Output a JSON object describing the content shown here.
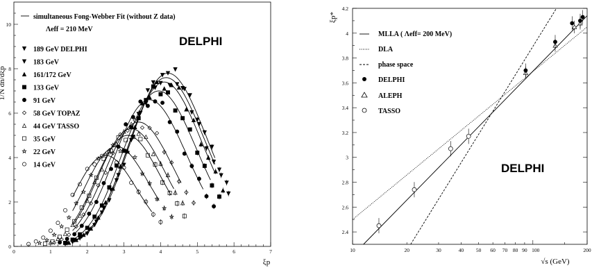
{
  "chart_data": [
    {
      "type": "scatter",
      "title": "DELPHI",
      "xlabel": "ξp",
      "ylabel": "1/N dn/dξp",
      "xlim": [
        0,
        7
      ],
      "ylim": [
        0,
        11
      ],
      "xticks": [
        "0",
        "1",
        "2",
        "3",
        "4",
        "5",
        "6",
        "7"
      ],
      "yticks": [
        "0",
        "2",
        "4",
        "6",
        "8",
        "10"
      ],
      "legend": {
        "fit": "simultaneous Fong-Webber Fit (without Z data)",
        "lambda": "Λeff = 210 MeV",
        "entries": [
          "189 GeV DELPHI",
          "183 GeV",
          "161/172 GeV",
          "133 GeV",
          "91 GeV",
          "58 GeV TOPAZ",
          "44 GeV TASSO",
          "35 GeV",
          "22 GeV",
          "14 GeV"
        ]
      },
      "series": [
        {
          "name": "189 GeV DELPHI",
          "marker": "tri-down",
          "peak_x": 4.2,
          "peak_y": 7.8,
          "width": 1.05,
          "xmax": 5.9,
          "shift": 0.0
        },
        {
          "name": "183 GeV",
          "marker": "tri-down-filled",
          "peak_x": 4.15,
          "peak_y": 7.6,
          "width": 1.05,
          "xmax": 5.9,
          "shift": 0.0
        },
        {
          "name": "161/172 GeV",
          "marker": "tri-up-filled",
          "peak_x": 4.1,
          "peak_y": 7.4,
          "width": 1.03,
          "xmax": 5.9,
          "shift": 0.0
        },
        {
          "name": "133 GeV",
          "marker": "square-filled",
          "peak_x": 3.95,
          "peak_y": 7.0,
          "width": 1.02,
          "xmax": 5.8,
          "shift": 0.0
        },
        {
          "name": "91 GeV",
          "marker": "circle-filled",
          "peak_x": 3.7,
          "peak_y": 6.6,
          "width": 1.0,
          "xmax": 5.6,
          "shift": 0.0
        },
        {
          "name": "58 GeV TOPAZ",
          "marker": "diamond-open",
          "peak_x": 3.4,
          "peak_y": 5.6,
          "width": 0.95,
          "xmax": 5.0,
          "shift": 0.0
        },
        {
          "name": "44 GeV TASSO",
          "marker": "tri-up-open",
          "peak_x": 3.2,
          "peak_y": 5.3,
          "width": 0.92,
          "xmax": 4.8,
          "shift": 0.0
        },
        {
          "name": "35 GeV",
          "marker": "square-open",
          "peak_x": 3.1,
          "peak_y": 5.0,
          "width": 0.9,
          "xmax": 4.7,
          "shift": 0.0
        },
        {
          "name": "22 GeV",
          "marker": "star-open",
          "peak_x": 2.8,
          "peak_y": 4.5,
          "width": 0.88,
          "xmax": 4.4,
          "shift": 0.0
        },
        {
          "name": "14 GeV",
          "marker": "circle-open",
          "peak_x": 2.5,
          "peak_y": 4.1,
          "width": 0.85,
          "xmax": 4.2,
          "shift": 0.0
        }
      ]
    },
    {
      "type": "scatter",
      "title": "DELPHI",
      "xlabel": "√s (GeV)",
      "ylabel": "ξp*",
      "xscale": "log",
      "xlim": [
        10,
        200
      ],
      "ylim": [
        2.3,
        4.2
      ],
      "xticks": [
        "10",
        "20",
        "30",
        "40",
        "50",
        "60",
        "70",
        "80",
        "90",
        "100",
        "200"
      ],
      "yticks": [
        "2.4",
        "2.6",
        "2.8",
        "3",
        "3.2",
        "3.4",
        "3.6",
        "3.8",
        "4",
        "4.2"
      ],
      "legend": {
        "mlla": "MLLA ( Λeff= 200 MeV)",
        "dla": "DLA",
        "phase": "phase space",
        "delphi": "DELPHI",
        "aleph": "ALEPH",
        "tasso": "TASSO"
      },
      "lines": {
        "mlla": {
          "x": [
            10,
            200
          ],
          "y": [
            2.21,
            4.14
          ]
        },
        "dla": {
          "x": [
            10,
            200
          ],
          "y": [
            2.5,
            4.05
          ]
        },
        "phase": {
          "x": [
            20,
            200
          ],
          "y": [
            2.25,
            4.6
          ]
        }
      },
      "points": {
        "tasso": [
          {
            "x": 14,
            "y": 2.45
          },
          {
            "x": 22,
            "y": 2.74
          },
          {
            "x": 35,
            "y": 3.07
          },
          {
            "x": 44,
            "y": 3.17
          }
        ],
        "delphi": [
          {
            "x": 91.2,
            "y": 3.7
          },
          {
            "x": 133,
            "y": 3.93
          },
          {
            "x": 165,
            "y": 4.08
          },
          {
            "x": 183,
            "y": 4.1
          },
          {
            "x": 189,
            "y": 4.13
          }
        ],
        "aleph": [
          {
            "x": 91.2,
            "y": 3.68
          },
          {
            "x": 133,
            "y": 3.9
          },
          {
            "x": 170,
            "y": 4.05
          },
          {
            "x": 183,
            "y": 4.08
          }
        ]
      }
    }
  ]
}
